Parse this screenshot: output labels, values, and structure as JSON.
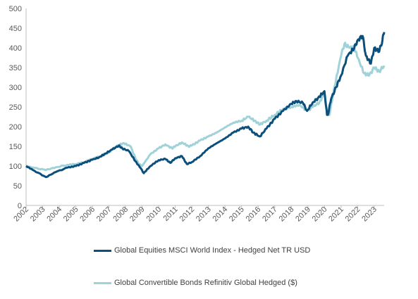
{
  "chart_data": {
    "type": "line",
    "title": "",
    "xlabel": "",
    "ylabel": "",
    "ylim": [
      0,
      500
    ],
    "yticks": [
      0,
      50,
      100,
      150,
      200,
      250,
      300,
      350,
      400,
      450,
      500
    ],
    "xlim": [
      2002,
      2023.6
    ],
    "xticks": [
      "2002",
      "2003",
      "2004",
      "2005",
      "2006",
      "2007",
      "2008",
      "2009",
      "2010",
      "2011",
      "2012",
      "2013",
      "2014",
      "2015",
      "2016",
      "2017",
      "2018",
      "2019",
      "2020",
      "2021",
      "2022",
      "2023"
    ],
    "grid": false,
    "legend_position": "bottom",
    "series": [
      {
        "name": "Global Equities MSCI World Index - Hedged Net TR USD",
        "color": "#0b4f7c",
        "x": [
          2002.0,
          2002.5,
          2003.2,
          2003.8,
          2004.5,
          2005.0,
          2005.5,
          2006.0,
          2006.4,
          2006.8,
          2007.2,
          2007.6,
          2007.8,
          2008.2,
          2008.6,
          2008.9,
          2009.1,
          2009.5,
          2010.0,
          2010.4,
          2010.7,
          2011.0,
          2011.4,
          2011.7,
          2012.0,
          2012.5,
          2013.0,
          2013.5,
          2014.0,
          2014.5,
          2015.0,
          2015.4,
          2015.7,
          2016.1,
          2016.5,
          2017.0,
          2017.5,
          2018.0,
          2018.3,
          2018.7,
          2018.95,
          2019.3,
          2019.6,
          2020.0,
          2020.15,
          2020.22,
          2020.4,
          2020.7,
          2021.0,
          2021.4,
          2021.8,
          2022.0,
          2022.3,
          2022.5,
          2022.8,
          2023.0,
          2023.3,
          2023.5,
          2023.6
        ],
        "y": [
          100,
          88,
          72,
          85,
          96,
          100,
          108,
          116,
          122,
          132,
          142,
          152,
          145,
          138,
          112,
          95,
          82,
          100,
          115,
          118,
          108,
          120,
          125,
          105,
          110,
          125,
          145,
          158,
          170,
          185,
          195,
          200,
          185,
          175,
          195,
          220,
          240,
          258,
          265,
          260,
          240,
          262,
          272,
          290,
          230,
          232,
          270,
          300,
          330,
          380,
          400,
          420,
          430,
          380,
          360,
          400,
          390,
          420,
          440
        ]
      },
      {
        "name": "Global Convertible Bonds Refinitiv Global Hedged ($)",
        "color": "#9fd2d9",
        "x": [
          2002.0,
          2002.5,
          2003.2,
          2003.8,
          2004.5,
          2005.0,
          2005.5,
          2006.0,
          2006.5,
          2007.0,
          2007.5,
          2007.9,
          2008.3,
          2008.6,
          2008.8,
          2009.0,
          2009.5,
          2010.0,
          2010.4,
          2010.8,
          2011.0,
          2011.4,
          2011.8,
          2012.0,
          2012.5,
          2013.0,
          2013.5,
          2014.0,
          2014.5,
          2015.0,
          2015.4,
          2015.8,
          2016.1,
          2016.5,
          2017.0,
          2017.5,
          2018.0,
          2018.5,
          2018.95,
          2019.3,
          2019.7,
          2020.0,
          2020.15,
          2020.3,
          2020.6,
          2021.0,
          2021.2,
          2021.5,
          2021.8,
          2022.0,
          2022.4,
          2022.7,
          2023.0,
          2023.3,
          2023.6
        ],
        "y": [
          100,
          95,
          90,
          97,
          103,
          105,
          110,
          118,
          125,
          135,
          152,
          158,
          150,
          120,
          105,
          100,
          130,
          145,
          155,
          145,
          150,
          160,
          150,
          152,
          165,
          175,
          185,
          198,
          210,
          215,
          225,
          215,
          205,
          215,
          230,
          245,
          250,
          255,
          240,
          250,
          262,
          285,
          240,
          230,
          300,
          380,
          410,
          400,
          400,
          375,
          335,
          330,
          350,
          340,
          355
        ]
      }
    ]
  }
}
